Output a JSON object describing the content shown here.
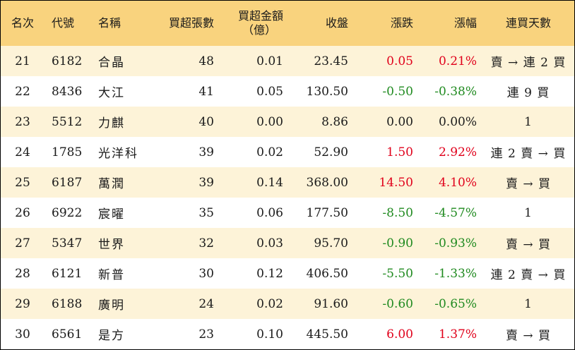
{
  "headers": {
    "rank": "名次",
    "code": "代號",
    "name": "名稱",
    "net_lots": "買超張數",
    "amount_line1": "買超金額",
    "amount_line2": "（億）",
    "close": "收盤",
    "change": "漲跌",
    "pct": "漲幅",
    "streak": "連買天數"
  },
  "colors": {
    "header_bg": "#f9d37e",
    "stripe_bg": "#fdf3d8",
    "up": "#e0001b",
    "down": "#1f8a1f"
  },
  "rows": [
    {
      "rank": "21",
      "code": "6182",
      "name": "合晶",
      "net_lots": "48",
      "amount": "0.01",
      "close": "23.45",
      "change": "0.05",
      "pct": "0.21%",
      "streak": "賣 → 連 2 買",
      "trend": "up"
    },
    {
      "rank": "22",
      "code": "8436",
      "name": "大江",
      "net_lots": "41",
      "amount": "0.05",
      "close": "130.50",
      "change": "-0.50",
      "pct": "-0.38%",
      "streak": "連 9 買",
      "trend": "down"
    },
    {
      "rank": "23",
      "code": "5512",
      "name": "力麒",
      "net_lots": "40",
      "amount": "0.00",
      "close": "8.86",
      "change": "0.00",
      "pct": "0.00%",
      "streak": "1",
      "trend": "flat"
    },
    {
      "rank": "24",
      "code": "1785",
      "name": "光洋科",
      "net_lots": "39",
      "amount": "0.02",
      "close": "52.90",
      "change": "1.50",
      "pct": "2.92%",
      "streak": "連 2 賣 → 買",
      "trend": "up"
    },
    {
      "rank": "25",
      "code": "6187",
      "name": "萬潤",
      "net_lots": "39",
      "amount": "0.14",
      "close": "368.00",
      "change": "14.50",
      "pct": "4.10%",
      "streak": "賣 → 買",
      "trend": "up"
    },
    {
      "rank": "26",
      "code": "6922",
      "name": "宸曜",
      "net_lots": "35",
      "amount": "0.06",
      "close": "177.50",
      "change": "-8.50",
      "pct": "-4.57%",
      "streak": "1",
      "trend": "down"
    },
    {
      "rank": "27",
      "code": "5347",
      "name": "世界",
      "net_lots": "32",
      "amount": "0.03",
      "close": "95.70",
      "change": "-0.90",
      "pct": "-0.93%",
      "streak": "賣 → 買",
      "trend": "down"
    },
    {
      "rank": "28",
      "code": "6121",
      "name": "新普",
      "net_lots": "30",
      "amount": "0.12",
      "close": "406.50",
      "change": "-5.50",
      "pct": "-1.33%",
      "streak": "連 2 賣 → 買",
      "trend": "down"
    },
    {
      "rank": "29",
      "code": "6188",
      "name": "廣明",
      "net_lots": "24",
      "amount": "0.02",
      "close": "91.60",
      "change": "-0.60",
      "pct": "-0.65%",
      "streak": "1",
      "trend": "down"
    },
    {
      "rank": "30",
      "code": "6561",
      "name": "是方",
      "net_lots": "23",
      "amount": "0.10",
      "close": "445.50",
      "change": "6.00",
      "pct": "1.37%",
      "streak": "賣 → 買",
      "trend": "up"
    }
  ]
}
